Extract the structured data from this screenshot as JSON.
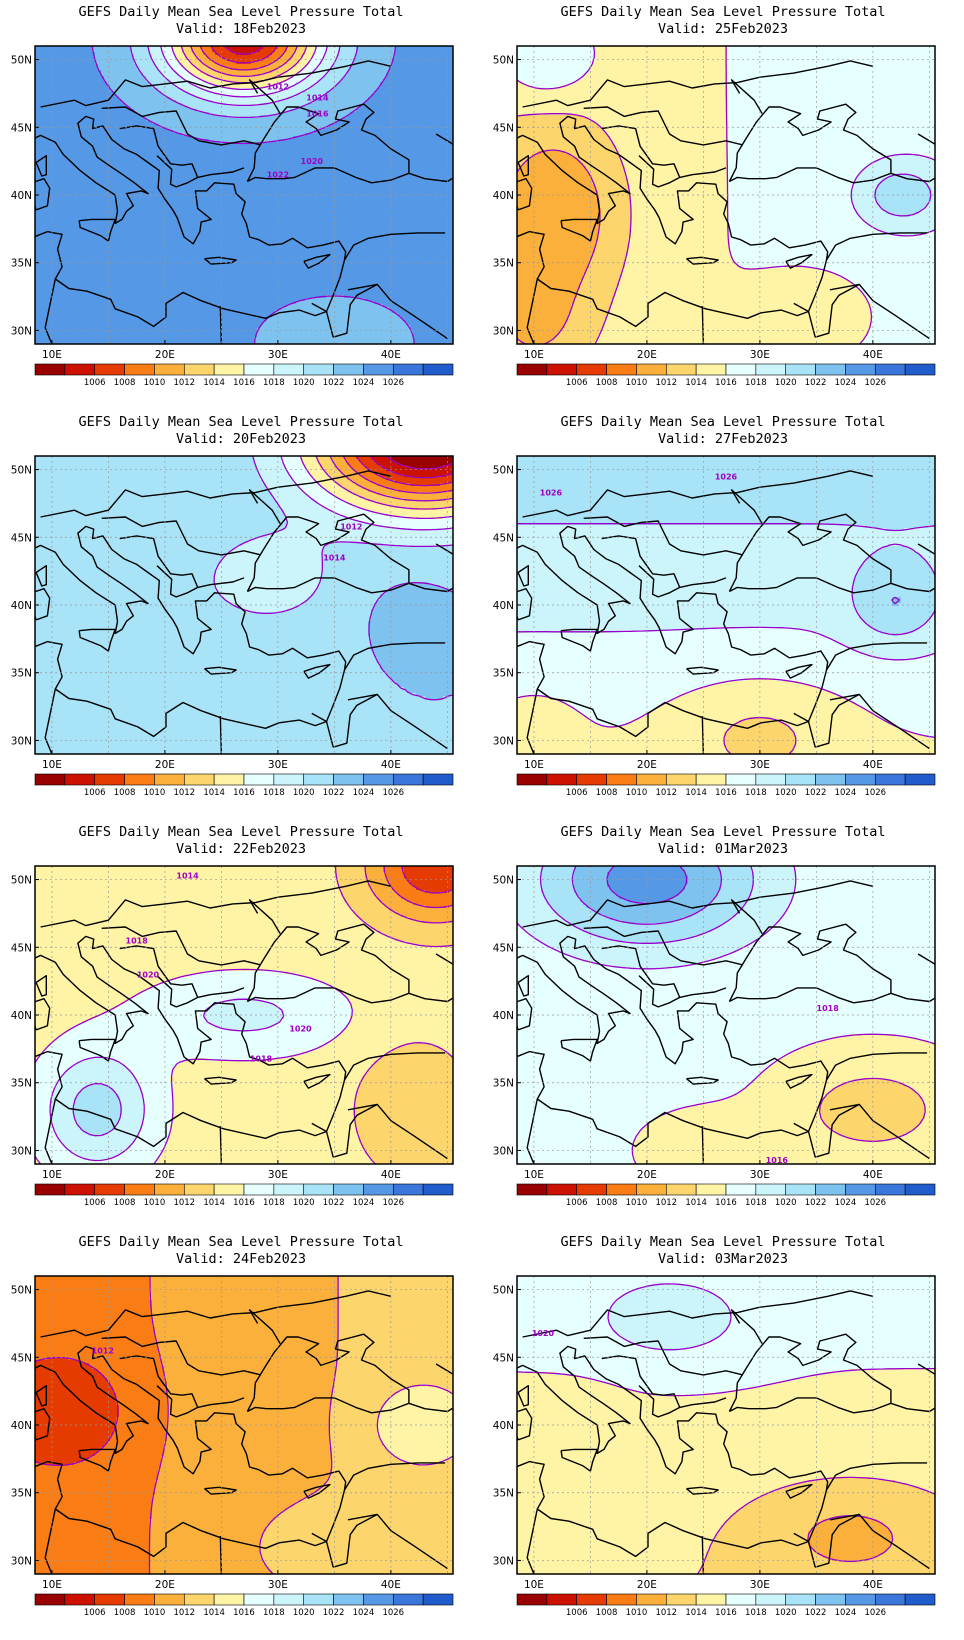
{
  "page_title": "GEFS Daily Mean Sea Level Pressure Total",
  "colors": {
    "boundary": "#000000",
    "contour": "#9900cc",
    "contour_label": "#a000c8",
    "gridline": "#999999",
    "palette": [
      "#990000",
      "#cc1100",
      "#e53a00",
      "#f97c14",
      "#fbb03b",
      "#fcd56c",
      "#fff3a6",
      "#e6ffff",
      "#ccf5fb",
      "#a8e3f8",
      "#7ec2f0",
      "#5599e6",
      "#3b77db",
      "#215ccd"
    ]
  },
  "color_scale": {
    "labels": [
      "1006",
      "1008",
      "1010",
      "1012",
      "1014",
      "1016",
      "1018",
      "1020",
      "1022",
      "1024",
      "1026"
    ]
  },
  "axes": {
    "lon_labels": [
      "10E",
      "20E",
      "30E",
      "40E"
    ],
    "lat_labels": [
      "50N",
      "45N",
      "40N",
      "35N",
      "30N"
    ],
    "lon_range": [
      8.5,
      45.5
    ],
    "lat_range": [
      29.0,
      51.0
    ]
  },
  "panels": [
    {
      "title": "GEFS Daily Mean Sea Level Pressure Total",
      "valid": "Valid: 18Feb2023",
      "field": {
        "b0": 1026.5,
        "blobs": [
          {
            "lon": 27.0,
            "lat": 51.5,
            "amp": -20,
            "sx": 7.0,
            "sy": 4.0
          },
          {
            "lon": 35.0,
            "lat": 29.0,
            "amp": -2,
            "sx": 6.0,
            "sy": 3.0
          }
        ]
      },
      "contour_labels": [
        {
          "text": "1012",
          "lon": 30.0,
          "lat": 48.0
        },
        {
          "text": "1014",
          "lon": 33.5,
          "lat": 47.2
        },
        {
          "text": "1016",
          "lon": 33.5,
          "lat": 46.0
        },
        {
          "text": "1020",
          "lon": 33.0,
          "lat": 42.5
        },
        {
          "text": "1022",
          "lon": 30.0,
          "lat": 41.5
        }
      ]
    },
    {
      "title": "GEFS Daily Mean Sea Level Pressure Total",
      "valid": "Valid: 25Feb2023",
      "field": {
        "b0": 1018.0,
        "bx": 0.06,
        "blobs": [
          {
            "lon": 12.0,
            "lat": 38.5,
            "amp": -5.0,
            "sx": 6.0,
            "sy": 7.0
          },
          {
            "lon": 10.0,
            "lat": 30.0,
            "amp": -2.5,
            "sx": 5.0,
            "sy": 4.0
          },
          {
            "lon": 42.5,
            "lat": 40.0,
            "amp": 4.5,
            "sx": 4.0,
            "sy": 2.5
          },
          {
            "lon": 35.0,
            "lat": 31.0,
            "amp": -2.0,
            "sx": 5.0,
            "sy": 3.0
          },
          {
            "lon": 11.0,
            "lat": 50.0,
            "amp": 3.0,
            "sx": 4.0,
            "sy": 3.0
          }
        ]
      },
      "contour_labels": []
    },
    {
      "title": "GEFS Daily Mean Sea Level Pressure Total",
      "valid": "Valid: 20Feb2023",
      "field": {
        "b0": 1024.0,
        "blobs": [
          {
            "lon": 43.0,
            "lat": 52.0,
            "amp": -21,
            "sx": 10.0,
            "sy": 5.0
          },
          {
            "lon": 29.0,
            "lat": 42.0,
            "amp": -3.5,
            "sx": 6.0,
            "sy": 3.5
          },
          {
            "lon": 20.0,
            "lat": 39.0,
            "amp": -1.5,
            "sx": 3.0,
            "sy": 3.0
          },
          {
            "lon": 42.0,
            "lat": 39.5,
            "amp": 1.0,
            "sx": 3.0,
            "sy": 2.0
          }
        ]
      },
      "contour_labels": [
        {
          "text": "1012",
          "lon": 36.5,
          "lat": 45.8
        },
        {
          "text": "1014",
          "lon": 35.0,
          "lat": 43.5
        }
      ]
    },
    {
      "title": "GEFS Daily Mean Sea Level Pressure Total",
      "valid": "Valid: 27Feb2023",
      "field": {
        "b0": 1020.5,
        "by": 0.25,
        "blobs": [
          {
            "lon": 42.0,
            "lat": 40.0,
            "amp": 3.5,
            "sx": 4.0,
            "sy": 3.0
          },
          {
            "lon": 30.0,
            "lat": 31.0,
            "amp": -2.5,
            "sx": 8.0,
            "sy": 4.0
          },
          {
            "lon": 10.0,
            "lat": 31.0,
            "amp": -1.5,
            "sx": 4.0,
            "sy": 3.0
          }
        ]
      },
      "contour_labels": [
        {
          "text": "1026",
          "lon": 27.0,
          "lat": 49.5
        },
        {
          "text": "1026",
          "lon": 11.5,
          "lat": 48.3
        }
      ]
    },
    {
      "title": "GEFS Daily Mean Sea Level Pressure Total",
      "valid": "Valid: 22Feb2023",
      "field": {
        "b0": 1017.0,
        "blobs": [
          {
            "lon": 44.0,
            "lat": 51.0,
            "amp": -9,
            "sx": 6.0,
            "sy": 4.0
          },
          {
            "lon": 14.0,
            "lat": 33.0,
            "amp": 6.0,
            "sx": 5.0,
            "sy": 4.5
          },
          {
            "lon": 27.0,
            "lat": 40.0,
            "amp": 3.5,
            "sx": 9.0,
            "sy": 3.0
          },
          {
            "lon": 42.0,
            "lat": 33.0,
            "amp": -3.0,
            "sx": 5.0,
            "sy": 5.0
          }
        ]
      },
      "contour_labels": [
        {
          "text": "1014",
          "lon": 22.0,
          "lat": 50.3
        },
        {
          "text": "1018",
          "lon": 17.5,
          "lat": 45.5
        },
        {
          "text": "1020",
          "lon": 18.5,
          "lat": 43.0
        },
        {
          "text": "1020",
          "lon": 32.0,
          "lat": 39.0
        },
        {
          "text": "1018",
          "lon": 28.5,
          "lat": 36.8
        }
      ]
    },
    {
      "title": "GEFS Daily Mean Sea Level Pressure Total",
      "valid": "Valid: 01Mar2023",
      "field": {
        "b0": 1018.5,
        "blobs": [
          {
            "lon": 20.0,
            "lat": 50.0,
            "amp": 8.5,
            "sx": 10.0,
            "sy": 5.0
          },
          {
            "lon": 40.0,
            "lat": 33.0,
            "amp": -3.5,
            "sx": 8.0,
            "sy": 4.0
          },
          {
            "lon": 25.0,
            "lat": 30.0,
            "amp": -1.5,
            "sx": 6.0,
            "sy": 3.0
          }
        ]
      },
      "contour_labels": [
        {
          "text": "1018",
          "lon": 36.0,
          "lat": 40.5
        },
        {
          "text": "1016",
          "lon": 31.5,
          "lat": 29.3
        }
      ]
    },
    {
      "title": "GEFS Daily Mean Sea Level Pressure Total",
      "valid": "Valid: 24Feb2023",
      "field": {
        "b0": 1013.0,
        "bx": 0.12,
        "blobs": [
          {
            "lon": 12.0,
            "lat": 41.0,
            "amp": -3.0,
            "sx": 5.0,
            "sy": 4.0
          },
          {
            "lon": 42.0,
            "lat": 40.0,
            "amp": 3.0,
            "sx": 4.0,
            "sy": 3.0
          },
          {
            "lon": 33.0,
            "lat": 31.0,
            "amp": 1.5,
            "sx": 6.0,
            "sy": 3.0
          }
        ]
      },
      "contour_labels": [
        {
          "text": "1012",
          "lon": 14.5,
          "lat": 45.5
        }
      ]
    },
    {
      "title": "GEFS Daily Mean Sea Level Pressure Total",
      "valid": "Valid: 03Mar2023",
      "field": {
        "b0": 1017.5,
        "by": 0.12,
        "blobs": [
          {
            "lon": 22.0,
            "lat": 47.5,
            "amp": 2.5,
            "sx": 8.0,
            "sy": 3.5
          },
          {
            "lon": 38.0,
            "lat": 32.0,
            "amp": -3.0,
            "sx": 9.0,
            "sy": 4.0
          },
          {
            "lon": 14.0,
            "lat": 40.0,
            "amp": -0.8,
            "sx": 4.0,
            "sy": 3.0
          }
        ]
      },
      "contour_labels": [
        {
          "text": "1020",
          "lon": 10.8,
          "lat": 46.8
        }
      ]
    }
  ]
}
